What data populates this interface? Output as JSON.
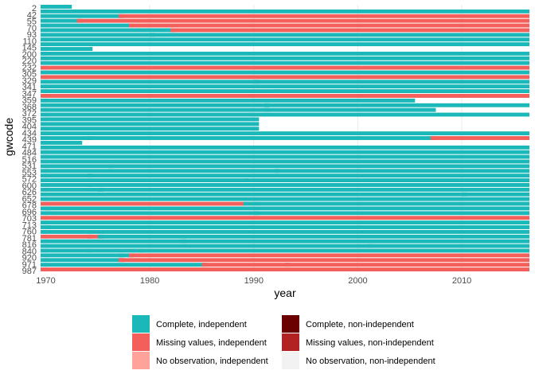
{
  "chart_data": {
    "type": "heatmap",
    "xlabel": "year",
    "ylabel": "gwcode",
    "xlim": [
      1969.5,
      2016.5
    ],
    "x_ticks": [
      1970,
      1980,
      1990,
      2000,
      2010
    ],
    "y_tick_labels": [
      "2",
      "42",
      "55",
      "70",
      "93",
      "110",
      "145",
      "200",
      "220",
      "232",
      "305",
      "329",
      "341",
      "347",
      "359",
      "368",
      "372",
      "395",
      "404",
      "434",
      "439",
      "471",
      "484",
      "516",
      "531",
      "553",
      "572",
      "600",
      "626",
      "652",
      "678",
      "696",
      "703",
      "713",
      "760",
      "781",
      "816",
      "840",
      "920",
      "971",
      "987"
    ],
    "grid": true,
    "legend_position": "bottom",
    "legend": [
      {
        "label": "Complete, independent",
        "color": "#1ab8b8"
      },
      {
        "label": "Missing values, independent",
        "color": "#f3605b"
      },
      {
        "label": "No observation, independent",
        "color": "#ffa29a"
      },
      {
        "label": "Complete, non-independent",
        "color": "#6b0000"
      },
      {
        "label": "Missing values, non-independent",
        "color": "#b22222"
      },
      {
        "label": "No observation, non-independent",
        "color": "#f2f2f2"
      }
    ],
    "rows": [
      {
        "y": 2,
        "segments": [
          [
            1970,
            1972.5,
            0
          ]
        ]
      },
      {
        "y": 2,
        "segments": [
          [
            1970,
            2016.5,
            0
          ]
        ]
      },
      {
        "y": 42,
        "segments": [
          [
            1970,
            1977.5,
            0
          ],
          [
            1977.5,
            2016.5,
            1
          ]
        ]
      },
      {
        "y": 42,
        "segments": [
          [
            1970,
            1973.5,
            0
          ],
          [
            1973.5,
            2016.5,
            1
          ]
        ]
      },
      {
        "y": 55,
        "segments": [
          [
            1970,
            1978.5,
            0
          ],
          [
            1978.5,
            2016.5,
            1
          ]
        ]
      },
      {
        "y": 55,
        "segments": [
          [
            1970,
            1982.5,
            0
          ],
          [
            1982.5,
            2016.5,
            1
          ]
        ]
      },
      {
        "y": 70,
        "segments": [
          [
            1970,
            1980.5,
            0
          ],
          [
            1980.5,
            2016.5,
            0
          ]
        ]
      },
      {
        "y": 70,
        "segments": [
          [
            1970,
            2016.5,
            0
          ]
        ]
      },
      {
        "y": 93,
        "segments": [
          [
            1970,
            2016.5,
            0
          ]
        ]
      },
      {
        "y": 110,
        "segments": [
          [
            1970,
            1974.5,
            0
          ]
        ]
      },
      {
        "y": 110,
        "segments": [
          [
            1970,
            2016.5,
            0
          ]
        ]
      },
      {
        "y": 145,
        "segments": [
          [
            1970,
            2016.5,
            0
          ]
        ]
      },
      {
        "y": 200,
        "segments": [
          [
            1970,
            2016.5,
            0
          ]
        ]
      },
      {
        "y": 220,
        "segments": [
          [
            1970,
            2016.5,
            1
          ]
        ]
      },
      {
        "y": 220,
        "segments": [
          [
            1970,
            2016.5,
            0
          ]
        ]
      },
      {
        "y": 232,
        "segments": [
          [
            1970,
            2016.5,
            1
          ]
        ]
      },
      {
        "y": 232,
        "segments": [
          [
            1970,
            1990.5,
            0
          ],
          [
            1990.5,
            2016.5,
            0
          ]
        ]
      },
      {
        "y": 305,
        "segments": [
          [
            1970,
            2016.5,
            0
          ]
        ]
      },
      {
        "y": 305,
        "segments": [
          [
            1970,
            1992.5,
            0
          ],
          [
            1992.5,
            2016.5,
            0
          ]
        ]
      },
      {
        "y": 329,
        "segments": [
          [
            1970,
            2016.5,
            1
          ]
        ]
      },
      {
        "y": 341,
        "segments": [
          [
            1970,
            2005.5,
            0
          ]
        ]
      },
      {
        "y": 341,
        "segments": [
          [
            1970,
            1991.5,
            0
          ],
          [
            1991.5,
            2016.5,
            0
          ]
        ]
      },
      {
        "y": 347,
        "segments": [
          [
            1970,
            1991.5,
            0
          ],
          [
            1991.5,
            2007.5,
            0
          ]
        ]
      },
      {
        "y": 347,
        "segments": [
          [
            1970,
            2016.5,
            0
          ]
        ]
      },
      {
        "y": 359,
        "segments": [
          [
            1970,
            1990.5,
            0
          ]
        ]
      },
      {
        "y": 368,
        "segments": [
          [
            1970,
            1990.5,
            0
          ]
        ]
      },
      {
        "y": 372,
        "segments": [
          [
            1970,
            1990.5,
            0
          ]
        ]
      },
      {
        "y": 395,
        "segments": [
          [
            1970,
            2016.5,
            0
          ]
        ]
      },
      {
        "y": 395,
        "segments": [
          [
            1970,
            1974.5,
            0
          ],
          [
            1974.5,
            2007.5,
            0
          ],
          [
            2007.5,
            2016.5,
            1
          ]
        ]
      },
      {
        "y": 404,
        "segments": [
          [
            1970,
            1973.5,
            0
          ]
        ]
      },
      {
        "y": 434,
        "segments": [
          [
            1970,
            2016.5,
            0
          ]
        ]
      },
      {
        "y": 439,
        "segments": [
          [
            1970,
            2016.5,
            0
          ]
        ]
      },
      {
        "y": 471,
        "segments": [
          [
            1970,
            2016.5,
            0
          ]
        ]
      },
      {
        "y": 484,
        "segments": [
          [
            1970,
            2016.5,
            0
          ]
        ]
      },
      {
        "y": 516,
        "segments": [
          [
            1970,
            1976.5,
            0
          ],
          [
            1976.5,
            2016.5,
            0
          ]
        ]
      },
      {
        "y": 531,
        "segments": [
          [
            1970,
            1992.5,
            0
          ],
          [
            1992.5,
            2016.5,
            0
          ]
        ]
      },
      {
        "y": 531,
        "segments": [
          [
            1970,
            1974.5,
            0
          ],
          [
            1974.5,
            2016.5,
            0
          ]
        ]
      },
      {
        "y": 553,
        "segments": [
          [
            1970,
            1989.5,
            0
          ],
          [
            1989.5,
            2016.5,
            0
          ]
        ]
      },
      {
        "y": 572,
        "segments": [
          [
            1970,
            1974.5,
            0
          ],
          [
            1974.5,
            2016.5,
            0
          ]
        ]
      },
      {
        "y": 600,
        "segments": [
          [
            1970,
            1975.5,
            0
          ],
          [
            1975.5,
            2016.5,
            0
          ]
        ]
      },
      {
        "y": 626,
        "segments": [
          [
            1970,
            2010.5,
            0
          ],
          [
            2010.5,
            2016.5,
            0
          ]
        ]
      },
      {
        "y": 652,
        "segments": [
          [
            1970,
            2016.5,
            0
          ]
        ]
      },
      {
        "y": 678,
        "segments": [
          [
            1970,
            1989.5,
            1
          ],
          [
            1989.5,
            1990.5,
            0
          ],
          [
            1990.5,
            2016.5,
            0
          ]
        ]
      },
      {
        "y": 696,
        "segments": [
          [
            1970,
            1970.5,
            0
          ],
          [
            1970.5,
            2016.5,
            0
          ]
        ]
      },
      {
        "y": 703,
        "segments": [
          [
            1970,
            1990.5,
            0
          ],
          [
            1990.5,
            2016.5,
            0
          ]
        ]
      },
      {
        "y": 713,
        "segments": [
          [
            1970,
            2016.5,
            1
          ]
        ]
      },
      {
        "y": 760,
        "segments": [
          [
            1970,
            2016.5,
            0
          ]
        ]
      },
      {
        "y": 760,
        "segments": [
          [
            1970,
            1970.5,
            0
          ],
          [
            1970.5,
            2016.5,
            0
          ]
        ]
      },
      {
        "y": 781,
        "segments": [
          [
            1970,
            2016.5,
            0
          ]
        ]
      },
      {
        "y": 816,
        "segments": [
          [
            1970,
            1974.5,
            1
          ],
          [
            1974.5,
            1975.5,
            1
          ],
          [
            1975.5,
            2016.5,
            0
          ]
        ]
      },
      {
        "y": 816,
        "segments": [
          [
            1970,
            1983.5,
            0
          ],
          [
            1983.5,
            2016.5,
            0
          ]
        ]
      },
      {
        "y": 840,
        "segments": [
          [
            1970,
            2001.5,
            0
          ],
          [
            2001.5,
            2016.5,
            0
          ]
        ]
      },
      {
        "y": 920,
        "segments": [
          [
            1970,
            1974.5,
            0
          ],
          [
            1974.5,
            1979.5,
            0
          ],
          [
            1979.5,
            2016.5,
            0
          ]
        ]
      },
      {
        "y": 920,
        "segments": [
          [
            1970,
            1977.5,
            0
          ],
          [
            1977.5,
            1978.5,
            0
          ],
          [
            1978.5,
            2016.5,
            1
          ]
        ]
      },
      {
        "y": 971,
        "segments": [
          [
            1970,
            1977.5,
            0
          ],
          [
            1977.5,
            2016.5,
            1
          ]
        ]
      },
      {
        "y": 971,
        "segments": [
          [
            1970,
            1985.5,
            0
          ],
          [
            1985.5,
            1993.5,
            1
          ],
          [
            1993.5,
            2016.5,
            1
          ]
        ]
      },
      {
        "y": 987,
        "segments": [
          [
            1970,
            2016.5,
            1
          ]
        ]
      }
    ]
  }
}
